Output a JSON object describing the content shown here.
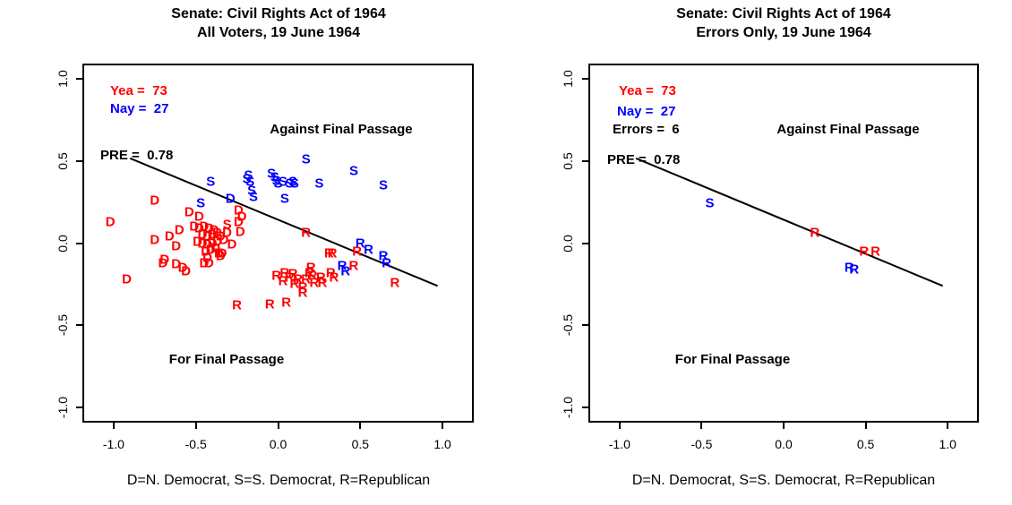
{
  "colors": {
    "yea": "#ff0000",
    "nay": "#0000ff",
    "line": "#000000",
    "background": "#ffffff"
  },
  "caption": "D=N. Democrat, S=S. Democrat, R=Republican",
  "chart_data": [
    {
      "type": "scatter",
      "title_line1": "Senate: Civil Rights Act of 1964",
      "title_line2": "All Voters, 19 June 1964",
      "legend": {
        "yea_label": "Yea =  73",
        "nay_label": "Nay =  27",
        "pre_label": "PRE =  0.78"
      },
      "yea_count": 73,
      "nay_count": 27,
      "pre": 0.78,
      "annotations": {
        "against": "Against Final Passage",
        "for": "For Final Passage"
      },
      "xlim": [
        -1.19,
        1.19
      ],
      "ylim": [
        -1.09,
        1.09
      ],
      "xticks": [
        -1.0,
        -0.5,
        0.0,
        0.5,
        1.0
      ],
      "yticks": [
        -1.0,
        -0.5,
        0.0,
        0.5,
        1.0
      ],
      "xtick_labels": [
        "-1.0",
        "-0.5",
        "0.0",
        "0.5",
        "1.0"
      ],
      "ytick_labels": [
        "-1.0",
        "-0.5",
        "0.0",
        "0.5",
        "1.0"
      ],
      "grid": false,
      "cutline": {
        "x1": -0.9,
        "y1": 0.515,
        "x2": 0.97,
        "y2": -0.26
      },
      "points": [
        {
          "l": "S",
          "c": "nay",
          "x": 0.17,
          "y": 0.51
        },
        {
          "l": "S",
          "c": "nay",
          "x": 0.46,
          "y": 0.44
        },
        {
          "l": "S",
          "c": "nay",
          "x": 0.64,
          "y": 0.35
        },
        {
          "l": "S",
          "c": "nay",
          "x": -0.41,
          "y": 0.37
        },
        {
          "l": "S",
          "c": "nay",
          "x": 0.25,
          "y": 0.36
        },
        {
          "l": "S",
          "c": "nay",
          "x": -0.18,
          "y": 0.41
        },
        {
          "l": "S",
          "c": "nay",
          "x": -0.17,
          "y": 0.37
        },
        {
          "l": "S",
          "c": "nay",
          "x": -0.16,
          "y": 0.32
        },
        {
          "l": "S",
          "c": "nay",
          "x": -0.15,
          "y": 0.28
        },
        {
          "l": "S",
          "c": "nay",
          "x": -0.19,
          "y": 0.39
        },
        {
          "l": "S",
          "c": "nay",
          "x": -0.04,
          "y": 0.42
        },
        {
          "l": "S",
          "c": "nay",
          "x": -0.01,
          "y": 0.38
        },
        {
          "l": "S",
          "c": "nay",
          "x": 0.03,
          "y": 0.37
        },
        {
          "l": "S",
          "c": "nay",
          "x": 0.07,
          "y": 0.36
        },
        {
          "l": "S",
          "c": "nay",
          "x": 0.1,
          "y": 0.36
        },
        {
          "l": "S",
          "c": "nay",
          "x": 0.09,
          "y": 0.37
        },
        {
          "l": "S",
          "c": "nay",
          "x": 0.04,
          "y": 0.27
        },
        {
          "l": "S",
          "c": "nay",
          "x": -0.47,
          "y": 0.24
        },
        {
          "l": "S",
          "c": "nay",
          "x": -0.02,
          "y": 0.4
        },
        {
          "l": "S",
          "c": "nay",
          "x": 0.0,
          "y": 0.36
        },
        {
          "l": "D",
          "c": "nay",
          "x": -0.29,
          "y": 0.27
        },
        {
          "l": "R",
          "c": "nay",
          "x": 0.5,
          "y": 0.0
        },
        {
          "l": "R",
          "c": "nay",
          "x": 0.55,
          "y": -0.04
        },
        {
          "l": "R",
          "c": "nay",
          "x": 0.64,
          "y": -0.08
        },
        {
          "l": "R",
          "c": "nay",
          "x": 0.66,
          "y": -0.12
        },
        {
          "l": "R",
          "c": "nay",
          "x": 0.39,
          "y": -0.14
        },
        {
          "l": "R",
          "c": "nay",
          "x": 0.41,
          "y": -0.17
        },
        {
          "l": "D",
          "c": "yea",
          "x": -1.02,
          "y": 0.13
        },
        {
          "l": "D",
          "c": "yea",
          "x": -0.75,
          "y": 0.26
        },
        {
          "l": "D",
          "c": "yea",
          "x": -0.92,
          "y": -0.22
        },
        {
          "l": "D",
          "c": "yea",
          "x": -0.7,
          "y": -0.12
        },
        {
          "l": "D",
          "c": "yea",
          "x": -0.62,
          "y": -0.13
        },
        {
          "l": "D",
          "c": "yea",
          "x": -0.58,
          "y": -0.15
        },
        {
          "l": "D",
          "c": "yea",
          "x": -0.56,
          "y": -0.17
        },
        {
          "l": "D",
          "c": "yea",
          "x": -0.43,
          "y": -0.09
        },
        {
          "l": "D",
          "c": "yea",
          "x": -0.42,
          "y": -0.12
        },
        {
          "l": "D",
          "c": "yea",
          "x": -0.35,
          "y": -0.08
        },
        {
          "l": "D",
          "c": "yea",
          "x": -0.69,
          "y": -0.1
        },
        {
          "l": "D",
          "c": "yea",
          "x": -0.6,
          "y": 0.08
        },
        {
          "l": "D",
          "c": "yea",
          "x": -0.66,
          "y": 0.04
        },
        {
          "l": "D",
          "c": "yea",
          "x": -0.62,
          "y": -0.02
        },
        {
          "l": "D",
          "c": "yea",
          "x": -0.75,
          "y": 0.02
        },
        {
          "l": "D",
          "c": "yea",
          "x": -0.54,
          "y": 0.19
        },
        {
          "l": "D",
          "c": "yea",
          "x": -0.48,
          "y": 0.16
        },
        {
          "l": "D",
          "c": "yea",
          "x": -0.24,
          "y": 0.2
        },
        {
          "l": "D",
          "c": "yea",
          "x": -0.22,
          "y": 0.16
        },
        {
          "l": "D",
          "c": "yea",
          "x": -0.24,
          "y": 0.13
        },
        {
          "l": "D",
          "c": "yea",
          "x": -0.23,
          "y": 0.07
        },
        {
          "l": "D",
          "c": "yea",
          "x": -0.28,
          "y": -0.01
        },
        {
          "l": "D",
          "c": "yea",
          "x": -0.34,
          "y": -0.06
        },
        {
          "l": "D",
          "c": "yea",
          "x": -0.45,
          "y": -0.12
        },
        {
          "l": "D",
          "c": "yea",
          "x": -0.51,
          "y": 0.1
        },
        {
          "l": "D",
          "c": "yea",
          "x": -0.48,
          "y": 0.09
        },
        {
          "l": "D",
          "c": "yea",
          "x": -0.45,
          "y": 0.1
        },
        {
          "l": "D",
          "c": "yea",
          "x": -0.42,
          "y": 0.09
        },
        {
          "l": "D",
          "c": "yea",
          "x": -0.39,
          "y": 0.08
        },
        {
          "l": "D",
          "c": "yea",
          "x": -0.46,
          "y": 0.05
        },
        {
          "l": "D",
          "c": "yea",
          "x": -0.43,
          "y": 0.04
        },
        {
          "l": "D",
          "c": "yea",
          "x": -0.4,
          "y": 0.05
        },
        {
          "l": "D",
          "c": "yea",
          "x": -0.37,
          "y": 0.06
        },
        {
          "l": "D",
          "c": "yea",
          "x": -0.35,
          "y": 0.04
        },
        {
          "l": "D",
          "c": "yea",
          "x": -0.49,
          "y": 0.01
        },
        {
          "l": "D",
          "c": "yea",
          "x": -0.46,
          "y": 0.0
        },
        {
          "l": "D",
          "c": "yea",
          "x": -0.43,
          "y": -0.01
        },
        {
          "l": "D",
          "c": "yea",
          "x": -0.4,
          "y": 0.0
        },
        {
          "l": "D",
          "c": "yea",
          "x": -0.37,
          "y": 0.01
        },
        {
          "l": "D",
          "c": "yea",
          "x": -0.33,
          "y": 0.02
        },
        {
          "l": "D",
          "c": "yea",
          "x": -0.31,
          "y": 0.06
        },
        {
          "l": "D",
          "c": "yea",
          "x": -0.44,
          "y": -0.05
        },
        {
          "l": "D",
          "c": "yea",
          "x": -0.41,
          "y": -0.04
        },
        {
          "l": "D",
          "c": "yea",
          "x": -0.38,
          "y": -0.03
        },
        {
          "l": "D",
          "c": "yea",
          "x": -0.36,
          "y": -0.06
        },
        {
          "l": "S",
          "c": "yea",
          "x": -0.31,
          "y": 0.11
        },
        {
          "l": "R",
          "c": "yea",
          "x": 0.17,
          "y": 0.06
        },
        {
          "l": "R",
          "c": "yea",
          "x": 0.33,
          "y": -0.06
        },
        {
          "l": "R",
          "c": "yea",
          "x": 0.48,
          "y": -0.05
        },
        {
          "l": "R",
          "c": "yea",
          "x": 0.46,
          "y": -0.14
        },
        {
          "l": "R",
          "c": "yea",
          "x": 0.71,
          "y": -0.24
        },
        {
          "l": "R",
          "c": "yea",
          "x": -0.25,
          "y": -0.38
        },
        {
          "l": "R",
          "c": "yea",
          "x": -0.05,
          "y": -0.37
        },
        {
          "l": "R",
          "c": "yea",
          "x": 0.05,
          "y": -0.36
        },
        {
          "l": "R",
          "c": "yea",
          "x": 0.15,
          "y": -0.3
        },
        {
          "l": "R",
          "c": "yea",
          "x": 0.04,
          "y": -0.18
        },
        {
          "l": "R",
          "c": "yea",
          "x": -0.01,
          "y": -0.2
        },
        {
          "l": "R",
          "c": "yea",
          "x": 0.03,
          "y": -0.23
        },
        {
          "l": "R",
          "c": "yea",
          "x": 0.1,
          "y": -0.25
        },
        {
          "l": "R",
          "c": "yea",
          "x": 0.15,
          "y": -0.27
        },
        {
          "l": "R",
          "c": "yea",
          "x": 0.2,
          "y": -0.15
        },
        {
          "l": "R",
          "c": "yea",
          "x": 0.21,
          "y": -0.2
        },
        {
          "l": "R",
          "c": "yea",
          "x": 0.26,
          "y": -0.21
        },
        {
          "l": "R",
          "c": "yea",
          "x": 0.34,
          "y": -0.21
        },
        {
          "l": "R",
          "c": "yea",
          "x": 0.31,
          "y": -0.06
        },
        {
          "l": "R",
          "c": "yea",
          "x": 0.07,
          "y": -0.21
        },
        {
          "l": "R",
          "c": "yea",
          "x": 0.12,
          "y": -0.22
        },
        {
          "l": "R",
          "c": "yea",
          "x": 0.17,
          "y": -0.22
        },
        {
          "l": "R",
          "c": "yea",
          "x": 0.22,
          "y": -0.24
        },
        {
          "l": "R",
          "c": "yea",
          "x": 0.27,
          "y": -0.24
        },
        {
          "l": "R",
          "c": "yea",
          "x": 0.09,
          "y": -0.19
        },
        {
          "l": "R",
          "c": "yea",
          "x": 0.19,
          "y": -0.18
        },
        {
          "l": "R",
          "c": "yea",
          "x": 0.32,
          "y": -0.18
        }
      ]
    },
    {
      "type": "scatter",
      "title_line1": "Senate: Civil Rights Act of 1964",
      "title_line2": "Errors Only, 19 June 1964",
      "legend": {
        "yea_label": "Yea =  73",
        "nay_label": "Nay =  27",
        "errors_label": "Errors =  6",
        "pre_label": "PRE =  0.78"
      },
      "yea_count": 73,
      "nay_count": 27,
      "errors_count": 6,
      "pre": 0.78,
      "annotations": {
        "against": "Against Final Passage",
        "for": "For Final Passage"
      },
      "xlim": [
        -1.19,
        1.19
      ],
      "ylim": [
        -1.09,
        1.09
      ],
      "xticks": [
        -1.0,
        -0.5,
        0.0,
        0.5,
        1.0
      ],
      "yticks": [
        -1.0,
        -0.5,
        0.0,
        0.5,
        1.0
      ],
      "xtick_labels": [
        "-1.0",
        "-0.5",
        "0.0",
        "0.5",
        "1.0"
      ],
      "ytick_labels": [
        "-1.0",
        "-0.5",
        "0.0",
        "0.5",
        "1.0"
      ],
      "grid": false,
      "cutline": {
        "x1": -0.9,
        "y1": 0.515,
        "x2": 0.97,
        "y2": -0.26
      },
      "points": [
        {
          "l": "S",
          "c": "nay",
          "x": -0.45,
          "y": 0.24
        },
        {
          "l": "R",
          "c": "yea",
          "x": 0.19,
          "y": 0.06
        },
        {
          "l": "R",
          "c": "yea",
          "x": 0.49,
          "y": -0.05
        },
        {
          "l": "R",
          "c": "yea",
          "x": 0.56,
          "y": -0.05
        },
        {
          "l": "R",
          "c": "nay",
          "x": 0.4,
          "y": -0.15
        },
        {
          "l": "R",
          "c": "nay",
          "x": 0.43,
          "y": -0.16
        }
      ]
    }
  ]
}
